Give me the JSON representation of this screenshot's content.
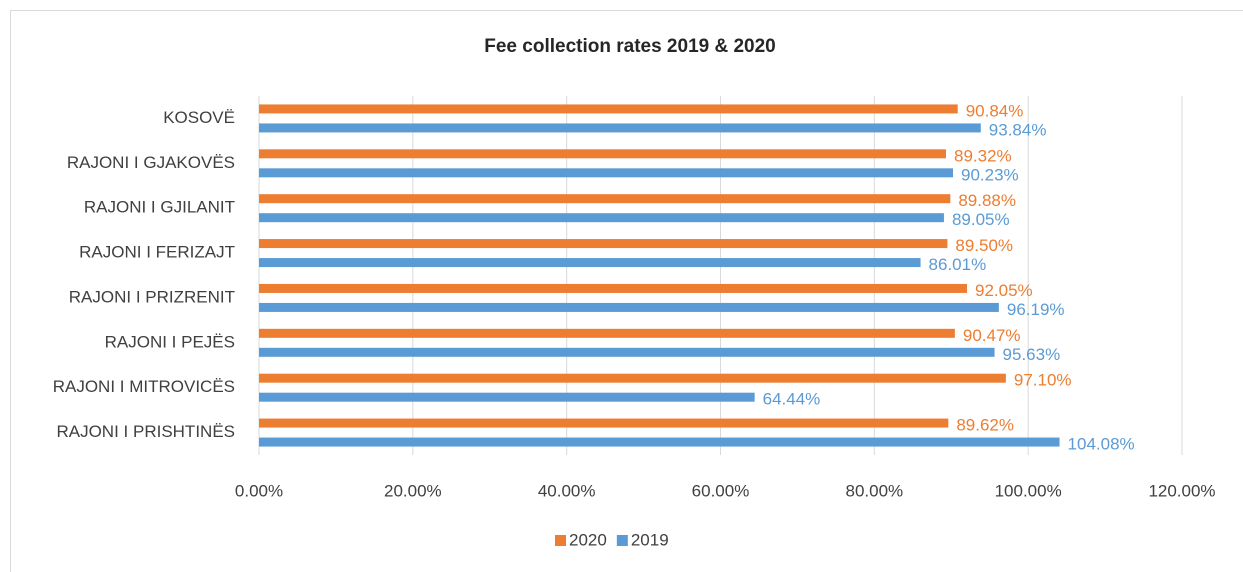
{
  "chart_data": {
    "type": "hbar",
    "title": "Fee collection rates 2019 & 2020",
    "categories": [
      "KOSOVË",
      "RAJONI I GJAKOVËS",
      "RAJONI I GJILANIT",
      "RAJONI I FERIZAJT",
      "RAJONI I PRIZRENIT",
      "RAJONI I PEJËS",
      "RAJONI I MITROVICËS",
      "RAJONI I PRISHTINËS"
    ],
    "series": [
      {
        "name": "2020",
        "color": "#ed7d31",
        "values": [
          90.84,
          89.32,
          89.88,
          89.5,
          92.05,
          90.47,
          97.1,
          89.62
        ],
        "value_labels": [
          "90.84%",
          "89.32%",
          "89.88%",
          "89.50%",
          "92.05%",
          "90.47%",
          "97.10%",
          "89.62%"
        ]
      },
      {
        "name": "2019",
        "color": "#5b9bd5",
        "values": [
          93.84,
          90.23,
          89.05,
          86.01,
          96.19,
          95.63,
          64.44,
          104.08
        ],
        "value_labels": [
          "93.84%",
          "90.23%",
          "89.05%",
          "86.01%",
          "96.19%",
          "95.63%",
          "64.44%",
          "104.08%"
        ]
      }
    ],
    "xlim": [
      0,
      120
    ],
    "xticks": [
      {
        "value": 0,
        "label": "0.00%"
      },
      {
        "value": 20,
        "label": "20.00%"
      },
      {
        "value": 40,
        "label": "40.00%"
      },
      {
        "value": 60,
        "label": "60.00%"
      },
      {
        "value": 80,
        "label": "80.00%"
      },
      {
        "value": 100,
        "label": "100.00%"
      },
      {
        "value": 120,
        "label": "120.00%"
      }
    ],
    "grid": true,
    "legend": "bottom"
  }
}
